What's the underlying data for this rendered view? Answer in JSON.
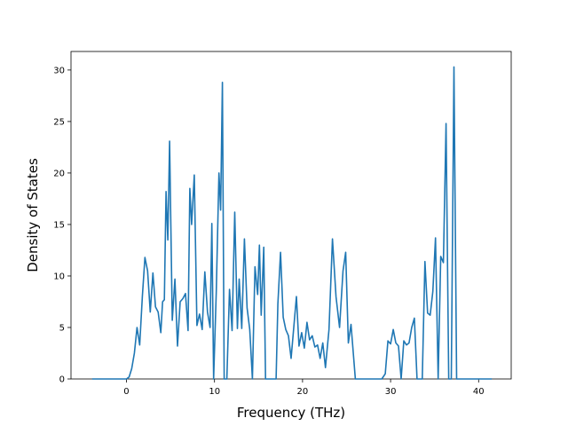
{
  "chart_data": {
    "type": "line",
    "title": "",
    "xlabel": "Frequency (THz)",
    "ylabel": "Density of States",
    "xlim": [
      -6.3,
      43.7
    ],
    "ylim": [
      0,
      31.8
    ],
    "xticks": [
      0,
      10,
      20,
      30,
      40
    ],
    "yticks": [
      0,
      5,
      10,
      15,
      20,
      25,
      30
    ],
    "grid": false,
    "legend": "none",
    "line_color": "#1f77b4",
    "series": [
      {
        "x": [
          -3.9,
          -2.0,
          0.0,
          0.3,
          0.6,
          0.9,
          1.2,
          1.5,
          1.8,
          2.1,
          2.4,
          2.7,
          3.0,
          3.3,
          3.6,
          3.9,
          4.1,
          4.3,
          4.5,
          4.7,
          4.9,
          5.2,
          5.5,
          5.8,
          6.1,
          6.4,
          6.7,
          7.0,
          7.2,
          7.4,
          7.7,
          8.0,
          8.3,
          8.6,
          8.9,
          9.2,
          9.5,
          9.7,
          9.9,
          10.2,
          10.5,
          10.7,
          10.9,
          11.1,
          11.4,
          11.7,
          12.0,
          12.3,
          12.6,
          12.8,
          13.1,
          13.4,
          13.7,
          14.0,
          14.3,
          14.6,
          14.9,
          15.1,
          15.3,
          15.6,
          15.8,
          16.2,
          17.0,
          17.2,
          17.5,
          17.8,
          18.1,
          18.4,
          18.7,
          19.0,
          19.3,
          19.6,
          19.9,
          20.2,
          20.5,
          20.8,
          21.1,
          21.4,
          21.7,
          22.0,
          22.3,
          22.6,
          23.0,
          23.4,
          23.8,
          24.2,
          24.6,
          24.9,
          25.2,
          25.5,
          26.0,
          29.0,
          29.4,
          29.7,
          30.0,
          30.3,
          30.6,
          30.9,
          31.2,
          31.5,
          31.8,
          32.1,
          32.4,
          32.7,
          33.0,
          33.3,
          33.6,
          33.9,
          34.2,
          34.5,
          34.8,
          35.1,
          35.4,
          35.7,
          36.0,
          36.3,
          36.6,
          36.9,
          37.2,
          37.5,
          37.8,
          38.5,
          41.5
        ],
        "y": [
          0,
          0,
          0,
          0.2,
          1.0,
          2.5,
          5.0,
          3.3,
          8.0,
          11.8,
          10.5,
          6.5,
          10.3,
          7.0,
          6.5,
          4.5,
          7.5,
          7.7,
          18.2,
          13.5,
          23.1,
          5.7,
          9.7,
          3.2,
          7.5,
          7.8,
          8.3,
          4.7,
          18.5,
          15.0,
          19.8,
          5.2,
          6.3,
          4.8,
          10.4,
          6.5,
          5.0,
          15.1,
          0,
          8.5,
          20.0,
          16.4,
          28.8,
          0,
          0,
          8.7,
          4.7,
          16.2,
          4.9,
          9.7,
          4.9,
          13.6,
          6.9,
          4.8,
          0,
          10.9,
          8.2,
          13.0,
          6.2,
          12.8,
          0,
          0,
          0,
          7.3,
          12.3,
          6.0,
          4.8,
          4.2,
          2.0,
          5.0,
          8.0,
          3.2,
          4.5,
          3.0,
          5.5,
          3.8,
          4.2,
          3.1,
          3.3,
          2.0,
          3.5,
          1.1,
          4.8,
          13.6,
          8.0,
          5.0,
          10.5,
          12.3,
          3.5,
          5.3,
          0,
          0,
          0.5,
          3.7,
          3.4,
          4.8,
          3.5,
          3.2,
          0,
          3.7,
          3.3,
          3.5,
          5.0,
          5.9,
          0,
          0,
          0,
          11.4,
          6.4,
          6.2,
          8.5,
          13.7,
          0,
          11.9,
          11.3,
          24.8,
          0,
          0,
          30.3,
          0,
          0,
          0,
          0
        ]
      }
    ]
  }
}
